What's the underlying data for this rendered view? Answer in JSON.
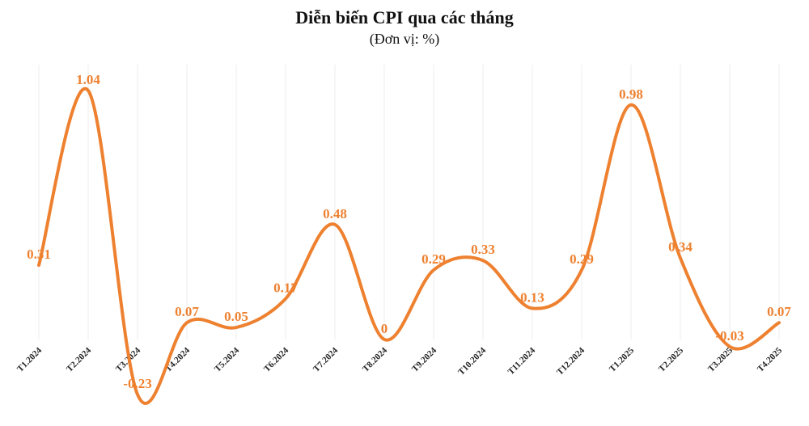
{
  "chart_data": {
    "type": "line",
    "title": "Diễn biến CPI qua các tháng",
    "subtitle": "(Đơn vị: %)",
    "categories": [
      "T1.2024",
      "T2.2024",
      "T3.2024",
      "T4.2024",
      "T5.2024",
      "T6.2024",
      "T7.2024",
      "T8.2024",
      "T9.2024",
      "T10.2024",
      "T11.2024",
      "T12.2024",
      "T1.2025",
      "T2.2025",
      "T3.2025",
      "T4.2025"
    ],
    "series": [
      {
        "name": "CPI",
        "color": "#ee8130",
        "values": [
          0.31,
          1.04,
          -0.23,
          0.07,
          0.05,
          0.17,
          0.48,
          0,
          0.29,
          0.33,
          0.13,
          0.29,
          0.98,
          0.34,
          -0.03,
          0.07
        ]
      }
    ],
    "grid": true
  }
}
